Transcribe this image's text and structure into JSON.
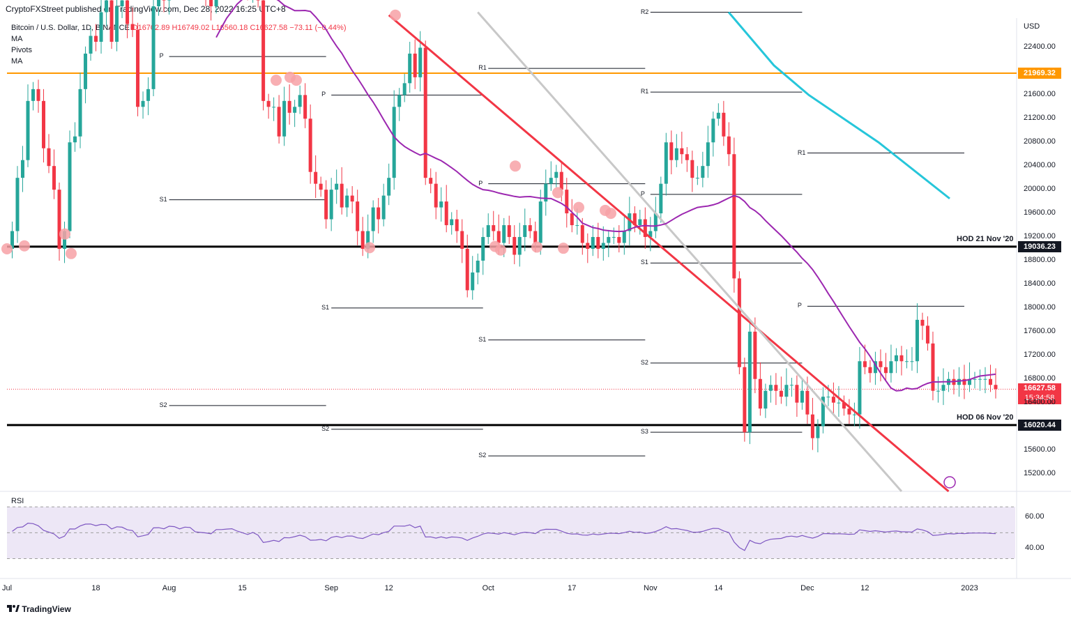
{
  "header": {
    "publisher_line": "CryptoFXStreet published on TradingView.com, Dec 28, 2022 16:25 UTC+8",
    "symbol_line": "Bitcoin / U.S. Dollar, 1D, BINANCE",
    "ohlc_open": "O16702.89",
    "ohlc_high": "H16749.02",
    "ohlc_low": "L16560.18",
    "ohlc_close": "C16627.58",
    "ohlc_change": "−73.11 (−0.44%)",
    "indicators": [
      "MA",
      "Pivots",
      "MA"
    ]
  },
  "colors": {
    "up": "#26a69a",
    "down": "#f23645",
    "ma_slow": "#26c6da",
    "ma_fast": "#9c27b0",
    "trend_red": "#f23645",
    "trend_gray": "#c8c8c8",
    "level_orange": "#ff9800",
    "pivot_circle": "#f7a1a6",
    "rsi_line": "#7e57c2",
    "rsi_band": "#ede7f6"
  },
  "chart_data": {
    "type": "candlestick",
    "price_axis": {
      "unit": "USD",
      "ticks": [
        22400,
        22000,
        21600,
        21200,
        20800,
        20400,
        20000,
        19600,
        19200,
        18800,
        18400,
        18000,
        17600,
        17200,
        16800,
        16400,
        16000,
        15600,
        15200
      ],
      "tick_labels": [
        "22400.00",
        "21600.00",
        "21200.00",
        "20800.00",
        "20400.00",
        "20000.00",
        "19600.00",
        "19200.00",
        "18800.00",
        "18400.00",
        "18000.00",
        "17600.00",
        "17200.00",
        "16800.00",
        "16400.00",
        "15600.00",
        "15200.00"
      ],
      "range": [
        14900,
        22900
      ]
    },
    "x_axis": {
      "labels": [
        {
          "label": "Jul",
          "date": "2022-07-01"
        },
        {
          "label": "18",
          "date": "2022-07-18"
        },
        {
          "label": "Aug",
          "date": "2022-08-01"
        },
        {
          "label": "15",
          "date": "2022-08-15"
        },
        {
          "label": "Sep",
          "date": "2022-09-01"
        },
        {
          "label": "12",
          "date": "2022-09-12"
        },
        {
          "label": "Oct",
          "date": "2022-10-01"
        },
        {
          "label": "17",
          "date": "2022-10-17"
        },
        {
          "label": "Nov",
          "date": "2022-11-01"
        },
        {
          "label": "14",
          "date": "2022-11-14"
        },
        {
          "label": "Dec",
          "date": "2022-12-01"
        },
        {
          "label": "12",
          "date": "2022-12-12"
        },
        {
          "label": "2023",
          "date": "2023-01-01"
        }
      ],
      "range": [
        "2022-07-01",
        "2023-01-10"
      ]
    },
    "levels": [
      {
        "name": "21969.32",
        "price": 21969.32,
        "color": "#ff9800",
        "note": ""
      },
      {
        "name": "19036.23",
        "price": 19036.23,
        "color": "#000000",
        "note": "HOD 21 Nov '20"
      },
      {
        "name": "16020.44",
        "price": 16020.44,
        "color": "#000000",
        "note": "HOD 06 Nov '20"
      }
    ],
    "last_price": {
      "value": "16627.58",
      "countdown": "15:34:58",
      "price": 16627.58
    },
    "pivots": [
      {
        "label": "P",
        "price": 22250,
        "from": "2022-08-01",
        "to": "2022-08-31"
      },
      {
        "label": "S1",
        "price": 19830,
        "from": "2022-08-01",
        "to": "2022-08-31"
      },
      {
        "label": "S2",
        "price": 16350,
        "from": "2022-08-01",
        "to": "2022-08-31"
      },
      {
        "label": "P",
        "price": 21600,
        "from": "2022-09-01",
        "to": "2022-09-30"
      },
      {
        "label": "S1",
        "price": 18000,
        "from": "2022-09-01",
        "to": "2022-09-30"
      },
      {
        "label": "S2",
        "price": 15950,
        "from": "2022-09-01",
        "to": "2022-09-30"
      },
      {
        "label": "R1",
        "price": 22050,
        "from": "2022-10-01",
        "to": "2022-10-31"
      },
      {
        "label": "P",
        "price": 20100,
        "from": "2022-10-01",
        "to": "2022-10-31"
      },
      {
        "label": "S1",
        "price": 17460,
        "from": "2022-10-01",
        "to": "2022-10-31"
      },
      {
        "label": "S2",
        "price": 15500,
        "from": "2022-10-01",
        "to": "2022-10-31"
      },
      {
        "label": "R2",
        "price": 23000,
        "from": "2022-11-01",
        "to": "2022-11-30"
      },
      {
        "label": "R1",
        "price": 21650,
        "from": "2022-11-01",
        "to": "2022-11-30"
      },
      {
        "label": "P",
        "price": 19920,
        "from": "2022-11-01",
        "to": "2022-11-30"
      },
      {
        "label": "S1",
        "price": 18760,
        "from": "2022-11-01",
        "to": "2022-11-30"
      },
      {
        "label": "S2",
        "price": 17070,
        "from": "2022-11-01",
        "to": "2022-11-30"
      },
      {
        "label": "S3",
        "price": 15900,
        "from": "2022-11-01",
        "to": "2022-11-30"
      },
      {
        "label": "R1",
        "price": 20620,
        "from": "2022-12-01",
        "to": "2022-12-31"
      },
      {
        "label": "P",
        "price": 18030,
        "from": "2022-12-01",
        "to": "2022-12-31"
      }
    ],
    "trendlines": [
      {
        "color": "#f23645",
        "from": {
          "date": "2022-09-12",
          "price": 22950
        },
        "to": {
          "date": "2022-12-28",
          "price": 14900
        }
      },
      {
        "color": "#c8c8c8",
        "from": {
          "date": "2022-09-29",
          "price": 23000
        },
        "to": {
          "date": "2022-12-19",
          "price": 14900
        }
      }
    ],
    "rsi": {
      "name": "RSI",
      "tick_labels": [
        "60.00",
        "40.00"
      ],
      "band": [
        30,
        70
      ],
      "range": [
        20,
        75
      ]
    }
  },
  "footer": {
    "brand": "TradingView"
  }
}
